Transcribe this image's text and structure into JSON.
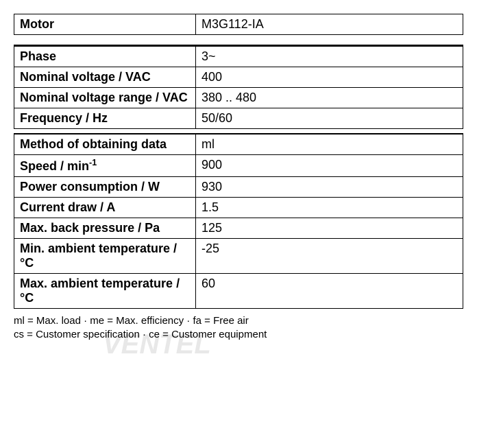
{
  "motor": {
    "label": "Motor",
    "value": "M3G112-IA"
  },
  "electrical": {
    "rows": [
      {
        "label": "Phase",
        "value": "3~"
      },
      {
        "label": "Nominal voltage / VAC",
        "value": "400"
      },
      {
        "label": "Nominal voltage range / VAC",
        "value": "380 .. 480"
      },
      {
        "label": "Frequency / Hz",
        "value": "50/60"
      }
    ]
  },
  "data": {
    "rows": [
      {
        "label": "Method of obtaining data",
        "value": "ml"
      },
      {
        "label_html": "Speed / min<span class=\"sup\">-1</span>",
        "label": "Speed / min-1",
        "value": "900"
      },
      {
        "label": "Power consumption / W",
        "value": "930"
      },
      {
        "label": "Current draw / A",
        "value": "1.5"
      },
      {
        "label": "Max. back pressure / Pa",
        "value": "125"
      },
      {
        "label": "Min. ambient temperature / °C",
        "value": "-25"
      },
      {
        "label": "Max. ambient temperature / °C",
        "value": "60"
      }
    ]
  },
  "footnotes": {
    "line1": "ml = Max. load · me = Max. efficiency · fa = Free air",
    "line2": "cs = Customer specification · ce = Customer equipment"
  },
  "watermark": "VENTEL"
}
